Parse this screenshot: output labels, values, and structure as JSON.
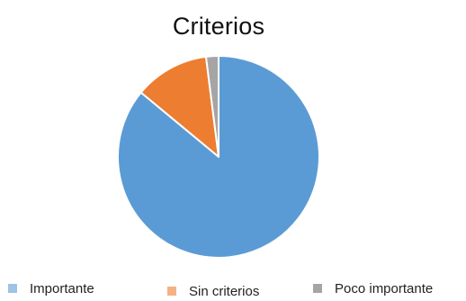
{
  "chart_data": {
    "type": "pie",
    "title": "Criterios",
    "categories": [
      "Importante",
      "Sin criterios",
      "Poco importante"
    ],
    "values": [
      86,
      12,
      2
    ],
    "colors": [
      "#5B9BD5",
      "#ED7D31",
      "#A5A5A5"
    ],
    "legend_colors": [
      "#9DC3E6",
      "#F4B183",
      "#A5A5A5"
    ],
    "legend_position": "bottom",
    "start_angle_deg": 0,
    "direction": "clockwise"
  }
}
